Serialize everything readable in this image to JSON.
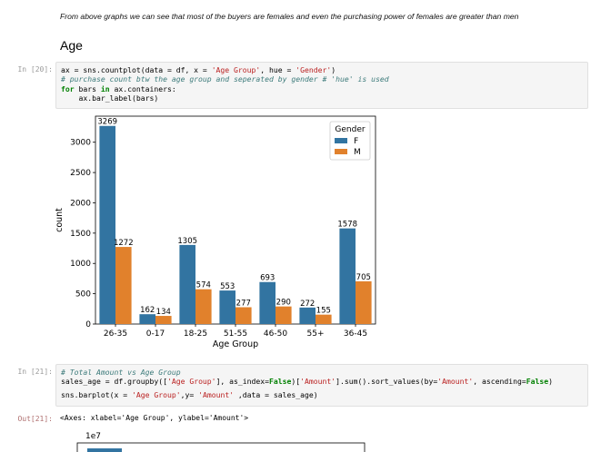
{
  "notebook": {
    "note": "From above graphs we can see that most of the buyers are females and even the purchasing power of females are greater than men",
    "heading": "Age"
  },
  "cell20": {
    "prompt": "In [20]:",
    "line1": {
      "a": "ax = sns.countplot(data = df, x = ",
      "s1": "'Age Group'",
      "b": ", hue = ",
      "s2": "'Gender'",
      "c": ")"
    },
    "line2": "# purchase count btw the age group and seperated by gender # 'hue' is used",
    "line3": {
      "kw1": "for",
      "a": " bars ",
      "kw2": "in",
      "b": " ax.containers:"
    },
    "line4": "    ax.bar_label(bars)"
  },
  "cell21": {
    "prompt": "In [21]:",
    "line1": "# Total Amount vs Age Group",
    "line2": {
      "a": "sales_age = df.groupby([",
      "s1": "'Age Group'",
      "b": "], as_index=",
      "k1": "False",
      "c": ")[",
      "s2": "'Amount'",
      "d": "].sum().sort_values(by=",
      "s3": "'Amount'",
      "e": ", ascending=",
      "k2": "False",
      "f": ")"
    },
    "line3": {
      "a": "sns.barplot(x = ",
      "s1": "'Age Group'",
      "b": ",y= ",
      "s2": "'Amount'",
      "c": " ,data = sales_age)"
    }
  },
  "out21": {
    "prompt": "Out[21]:",
    "text": "<Axes: xlabel='Age Group', ylabel='Amount'>"
  },
  "chart_data": {
    "type": "bar",
    "categories": [
      "26-35",
      "0-17",
      "18-25",
      "51-55",
      "46-50",
      "55+",
      "36-45"
    ],
    "series": [
      {
        "name": "F",
        "values": [
          3269,
          162,
          1305,
          553,
          693,
          272,
          1578
        ]
      },
      {
        "name": "M",
        "values": [
          1272,
          134,
          574,
          277,
          290,
          155,
          705
        ]
      }
    ],
    "title": "",
    "xlabel": "Age Group",
    "ylabel": "count",
    "ylim": [
      0,
      3430
    ],
    "yticks": [
      0,
      500,
      1000,
      1500,
      2000,
      2500,
      3000
    ],
    "legend_title": "Gender",
    "legend_position": "top-right",
    "grid": false,
    "colors": [
      "#3274a1",
      "#e1812c"
    ],
    "bar_labels": true
  },
  "chart2": {
    "offset_label": "1e7",
    "first_bar_color": "#3274a1"
  }
}
